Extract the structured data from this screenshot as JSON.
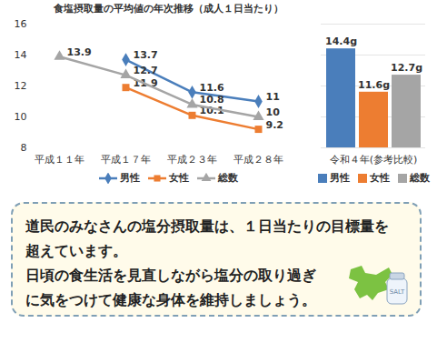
{
  "chart_data": [
    {
      "type": "line",
      "title": "食塩摂取量の平均値の年次推移（成人１日当たり）",
      "categories": [
        "平成１１年",
        "平成１７年",
        "平成２３年",
        "平成２８年"
      ],
      "series": [
        {
          "name": "男性",
          "color": "#4a7ebb",
          "marker": "diamond",
          "values": [
            null,
            13.7,
            11.6,
            11
          ]
        },
        {
          "name": "女性",
          "color": "#ed7d31",
          "marker": "square",
          "values": [
            null,
            11.9,
            10.1,
            9.2
          ]
        },
        {
          "name": "総数",
          "color": "#a5a5a5",
          "marker": "triangle",
          "values": [
            13.9,
            12.7,
            10.8,
            10
          ]
        }
      ],
      "ylim": [
        8,
        16
      ],
      "yticks": [
        8,
        10,
        12,
        14,
        16
      ],
      "grid": false,
      "data_labels": true,
      "legend": "bottom"
    },
    {
      "type": "bar",
      "categories": [
        "令和４年(参考比較)"
      ],
      "series": [
        {
          "name": "男性",
          "color": "#4a7ebb",
          "values": [
            14.4
          ],
          "value_labels": [
            "14.4g"
          ]
        },
        {
          "name": "女性",
          "color": "#ed7d31",
          "values": [
            11.6
          ],
          "value_labels": [
            "11.6g"
          ]
        },
        {
          "name": "総数",
          "color": "#a5a5a5",
          "values": [
            12.7
          ],
          "value_labels": [
            "12.7g"
          ]
        }
      ],
      "ylim": [
        8,
        16
      ],
      "yticks": [
        8,
        10,
        12,
        14,
        16
      ],
      "grid": true,
      "tick_labels": "x",
      "data_labels": true,
      "legend": "bottom"
    }
  ],
  "message": {
    "lines": [
      "道民のみなさんの塩分摂取量は、１日当たりの目標量を",
      "超えています。",
      "日頃の食生活を見直しながら塩分の取り過ぎ",
      "に気をつけて健康な身体を維持しましょう。"
    ],
    "icon_text": "SALT"
  }
}
